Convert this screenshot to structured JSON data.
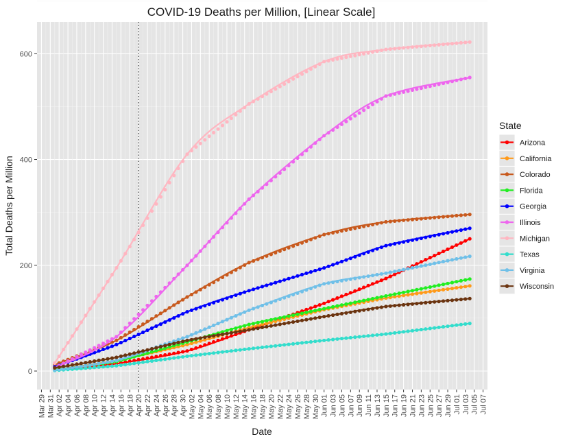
{
  "chart_data": {
    "type": "scatter",
    "title": "COVID-19 Deaths per Million, [Linear Scale]",
    "xlabel": "Date",
    "ylabel": "Total Deaths per Million",
    "xlim": [
      "2020-03-28",
      "2020-07-08"
    ],
    "ylim": [
      -35,
      660
    ],
    "y_ticks": [
      0,
      200,
      400,
      600
    ],
    "x_ticks": [
      "Mar 29",
      "Mar 31",
      "Apr 02",
      "Apr 04",
      "Apr 06",
      "Apr 08",
      "Apr 10",
      "Apr 12",
      "Apr 14",
      "Apr 16",
      "Apr 18",
      "Apr 20",
      "Apr 22",
      "Apr 24",
      "Apr 26",
      "Apr 28",
      "Apr 30",
      "May 02",
      "May 04",
      "May 06",
      "May 08",
      "May 10",
      "May 12",
      "May 14",
      "May 16",
      "May 18",
      "May 20",
      "May 22",
      "May 24",
      "May 26",
      "May 28",
      "May 30",
      "Jun 01",
      "Jun 03",
      "Jun 05",
      "Jun 07",
      "Jun 09",
      "Jun 11",
      "Jun 13",
      "Jun 15",
      "Jun 17",
      "Jun 19",
      "Jun 21",
      "Jun 23",
      "Jun 25",
      "Jun 27",
      "Jun 29",
      "Jul 01",
      "Jul 03",
      "Jul 05",
      "Jul 07"
    ],
    "grid": true,
    "background": "#e5e5e5",
    "vline": {
      "x": "2020-04-20",
      "style": "dotted"
    },
    "legend": {
      "title": "State",
      "position": "right"
    },
    "x_dates": [
      "2020-04-01",
      "2020-04-15",
      "2020-05-01",
      "2020-05-15",
      "2020-06-01",
      "2020-06-15",
      "2020-07-04"
    ],
    "series": [
      {
        "name": "Arizona",
        "color": "#ff0000",
        "values": [
          2,
          14,
          38,
          78,
          128,
          175,
          250
        ]
      },
      {
        "name": "California",
        "color": "#ff9a1a",
        "values": [
          3,
          20,
          50,
          82,
          116,
          138,
          161
        ]
      },
      {
        "name": "Colorado",
        "color": "#c85a1e",
        "values": [
          12,
          58,
          140,
          205,
          258,
          282,
          296
        ]
      },
      {
        "name": "Florida",
        "color": "#22ee22",
        "values": [
          3,
          18,
          55,
          88,
          118,
          142,
          174
        ]
      },
      {
        "name": "Georgia",
        "color": "#0000ff",
        "values": [
          8,
          50,
          112,
          152,
          195,
          237,
          270
        ]
      },
      {
        "name": "Illinois",
        "color": "#ee66ee",
        "values": [
          6,
          65,
          200,
          325,
          445,
          520,
          555
        ]
      },
      {
        "name": "Michigan",
        "color": "#ffb6c1",
        "values": [
          15,
          195,
          410,
          505,
          585,
          608,
          622
        ]
      },
      {
        "name": "Texas",
        "color": "#33ddcc",
        "values": [
          1,
          10,
          28,
          42,
          58,
          70,
          90
        ]
      },
      {
        "name": "Virginia",
        "color": "#70c0e8",
        "values": [
          2,
          20,
          65,
          115,
          165,
          185,
          217
        ]
      },
      {
        "name": "Wisconsin",
        "color": "#6b3410",
        "values": [
          6,
          26,
          58,
          78,
          103,
          122,
          137
        ]
      }
    ]
  }
}
